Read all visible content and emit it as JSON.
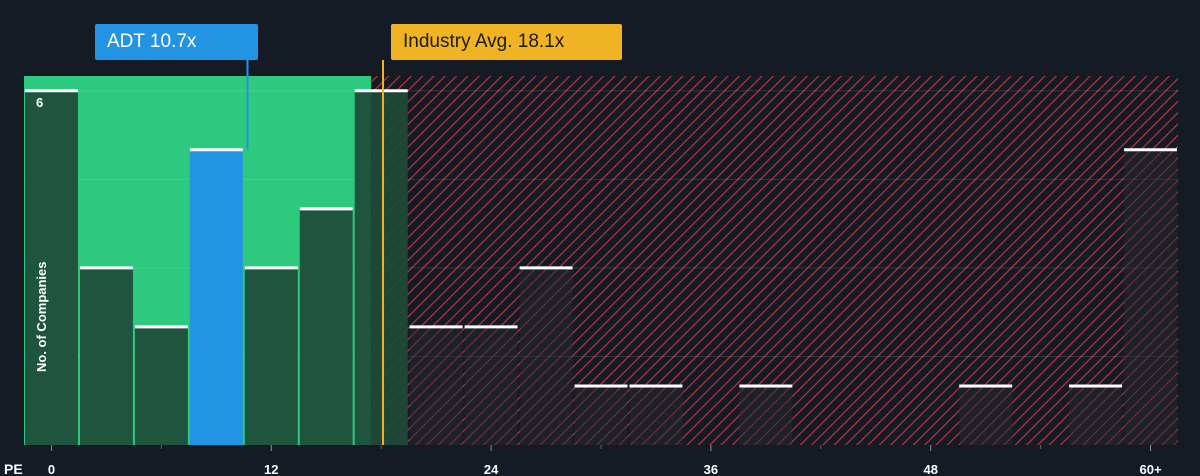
{
  "company": {
    "label": "ADT 10.7x",
    "pe": 10.7,
    "color": "#2394e3"
  },
  "industry": {
    "label": "Industry Avg. 18.1x",
    "pe": 18.1,
    "color": "#f0b323"
  },
  "colors": {
    "background": "#151b24",
    "undervalued_zone": "#2dc97e",
    "overvalued_hatch": "#c8363f",
    "bar_dark": "#1e4a3a",
    "bar_cap": "#ffffff"
  },
  "chart_data": {
    "type": "bar",
    "xlabel": "PE",
    "ylabel": "No. of Companies",
    "x_ticks": [
      "0",
      "12",
      "24",
      "36",
      "48",
      "60+"
    ],
    "x_tick_values": [
      0,
      12,
      24,
      36,
      48,
      60
    ],
    "y_ticks": [
      "6"
    ],
    "y_tick_values": [
      6
    ],
    "xlim": [
      -1.5,
      61.5
    ],
    "ylim": [
      0,
      6.25
    ],
    "bin_width": 3,
    "bins": [
      {
        "start": 0,
        "count": 6
      },
      {
        "start": 3,
        "count": 3
      },
      {
        "start": 6,
        "count": 2
      },
      {
        "start": 9,
        "count": 5
      },
      {
        "start": 12,
        "count": 3
      },
      {
        "start": 15,
        "count": 4
      },
      {
        "start": 18,
        "count": 6
      },
      {
        "start": 21,
        "count": 2
      },
      {
        "start": 24,
        "count": 2
      },
      {
        "start": 27,
        "count": 3
      },
      {
        "start": 30,
        "count": 1
      },
      {
        "start": 33,
        "count": 1
      },
      {
        "start": 36,
        "count": 0
      },
      {
        "start": 39,
        "count": 1
      },
      {
        "start": 42,
        "count": 0
      },
      {
        "start": 45,
        "count": 0
      },
      {
        "start": 48,
        "count": 0
      },
      {
        "start": 51,
        "count": 1
      },
      {
        "start": 54,
        "count": 0
      },
      {
        "start": 57,
        "count": 1
      },
      {
        "start": 60,
        "count": 5
      }
    ],
    "highlight_bin_start": 9,
    "grid": true
  }
}
